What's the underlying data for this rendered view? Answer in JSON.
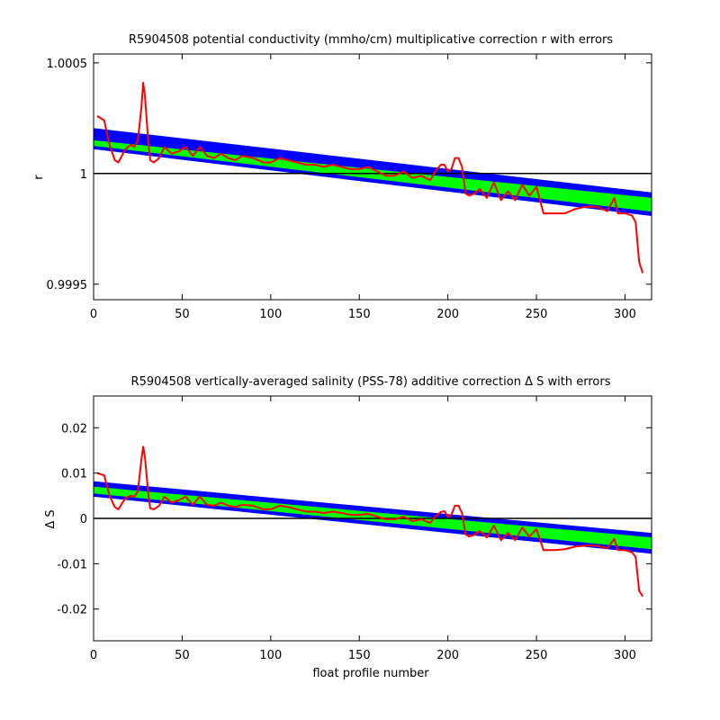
{
  "chart_data": [
    {
      "type": "line",
      "title": "R5904508 potential conductivity (mmho/cm) multiplicative correction r with errors",
      "xlabel": "",
      "ylabel": "r",
      "xlim": [
        0,
        315
      ],
      "ylim": [
        0.99943,
        1.00054
      ],
      "xticks": [
        0,
        50,
        100,
        150,
        200,
        250,
        300
      ],
      "xtick_labels": [
        "0",
        "50",
        "100",
        "150",
        "200",
        "250",
        "300"
      ],
      "yticks": [
        0.9995,
        1.0,
        1.0005
      ],
      "ytick_labels": [
        "0.9995",
        "1",
        "1.0005"
      ],
      "reference_line": 1.0,
      "grid": false,
      "colors": {
        "fit_band": "#00ff00",
        "error_band": "#0000ff",
        "raw_series": "#ff0000",
        "reference": "#000000"
      },
      "series": [
        {
          "kind": "band",
          "x": [
            0,
            315
          ],
          "outer_lower": [
            1.00011,
            0.999808
          ],
          "inner_lower": [
            1.000125,
            0.999828
          ],
          "inner_upper": [
            1.00015,
            0.99989
          ],
          "outer_upper": [
            1.000205,
            0.999915
          ]
        },
        {
          "kind": "line",
          "x": [
            2,
            6,
            9,
            12,
            14,
            18,
            21,
            23,
            25,
            27,
            28,
            29,
            31,
            32,
            34,
            37,
            40,
            44,
            48,
            52,
            56,
            60,
            64,
            68,
            72,
            76,
            80,
            84,
            90,
            96,
            100,
            105,
            110,
            115,
            120,
            125,
            130,
            135,
            140,
            145,
            150,
            155,
            160,
            165,
            170,
            175,
            180,
            185,
            190,
            193,
            196,
            198,
            200,
            202,
            204,
            206,
            208,
            210,
            212,
            215,
            218,
            222,
            226,
            230,
            234,
            238,
            242,
            246,
            250,
            254,
            260,
            266,
            272,
            278,
            284,
            290,
            294,
            296,
            300,
            304,
            306,
            308,
            310
          ],
          "y": [
            1.00026,
            1.00024,
            1.00013,
            1.00006,
            1.00005,
            1.00011,
            1.00013,
            1.00012,
            1.00015,
            1.0003,
            1.00041,
            1.00035,
            1.00013,
            1.00006,
            1.00005,
            1.00007,
            1.00012,
            1.00009,
            1.0001,
            1.00012,
            1.00008,
            1.00012,
            1.00008,
            1.00007,
            1.00009,
            1.00007,
            1.00006,
            1.00008,
            1.00007,
            1.00005,
            1.00005,
            1.00007,
            1.00006,
            1.00005,
            1.00004,
            1.00004,
            1.00003,
            1.00004,
            1.00003,
            1.00002,
            1.00002,
            1.00003,
            1.00001,
            0.99999,
            0.99999,
            1.00001,
            0.99998,
            0.99999,
            0.99997,
            1.00001,
            1.00004,
            1.00004,
            1.00001,
            1.00002,
            1.00007,
            1.00007,
            1.00003,
            0.99991,
            0.9999,
            0.99991,
            0.99993,
            0.99989,
            0.99996,
            0.99988,
            0.99992,
            0.99988,
            0.99995,
            0.9999,
            0.99994,
            0.99982,
            0.99982,
            0.99982,
            0.99984,
            0.99985,
            0.99985,
            0.99983,
            0.99989,
            0.99982,
            0.99982,
            0.99981,
            0.99978,
            0.9996,
            0.99955
          ]
        }
      ]
    },
    {
      "type": "line",
      "title": "R5904508 vertically-averaged salinity (PSS-78) additive correction Δ S with errors",
      "xlabel": "float profile number",
      "ylabel": "Δ S",
      "xlim": [
        0,
        315
      ],
      "ylim": [
        -0.027,
        0.027
      ],
      "xticks": [
        0,
        50,
        100,
        150,
        200,
        250,
        300
      ],
      "xtick_labels": [
        "0",
        "50",
        "100",
        "150",
        "200",
        "250",
        "300"
      ],
      "yticks": [
        -0.02,
        -0.01,
        0,
        0.01,
        0.02
      ],
      "ytick_labels": [
        "-0.02",
        "-0.01",
        "0",
        "0.01",
        "0.02"
      ],
      "reference_line": 0,
      "grid": false,
      "colors": {
        "fit_band": "#00ff00",
        "error_band": "#0000ff",
        "raw_series": "#ff0000",
        "reference": "#000000"
      },
      "series": [
        {
          "kind": "band",
          "x": [
            0,
            315
          ],
          "outer_lower": [
            0.0048,
            -0.0078
          ],
          "inner_lower": [
            0.0055,
            -0.0068
          ],
          "inner_upper": [
            0.007,
            -0.0042
          ],
          "outer_upper": [
            0.0082,
            -0.0032
          ]
        },
        {
          "kind": "line",
          "x": [
            2,
            6,
            9,
            12,
            14,
            18,
            21,
            23,
            25,
            27,
            28,
            29,
            31,
            32,
            34,
            37,
            40,
            44,
            48,
            52,
            56,
            60,
            64,
            68,
            72,
            76,
            80,
            84,
            90,
            96,
            100,
            105,
            110,
            115,
            120,
            125,
            130,
            135,
            140,
            145,
            150,
            155,
            160,
            165,
            170,
            175,
            180,
            185,
            190,
            193,
            196,
            198,
            200,
            202,
            204,
            206,
            208,
            210,
            212,
            215,
            218,
            222,
            226,
            230,
            234,
            238,
            242,
            246,
            250,
            254,
            260,
            266,
            272,
            278,
            284,
            290,
            294,
            296,
            300,
            304,
            306,
            308,
            310
          ],
          "y": [
            0.01,
            0.0095,
            0.005,
            0.0025,
            0.002,
            0.0045,
            0.005,
            0.0048,
            0.006,
            0.013,
            0.0158,
            0.0135,
            0.005,
            0.0022,
            0.002,
            0.0028,
            0.0048,
            0.0035,
            0.004,
            0.0048,
            0.003,
            0.0048,
            0.003,
            0.0028,
            0.0035,
            0.0028,
            0.0025,
            0.003,
            0.0028,
            0.002,
            0.002,
            0.0028,
            0.0025,
            0.002,
            0.0015,
            0.0015,
            0.0012,
            0.0015,
            0.0012,
            0.0008,
            0.0008,
            0.001,
            0.0004,
            -0.0002,
            -0.0002,
            0.0004,
            -0.0006,
            -0.0002,
            -0.001,
            0.0004,
            0.0014,
            0.0016,
            0.0004,
            0.0008,
            0.0028,
            0.0028,
            0.0012,
            -0.0035,
            -0.004,
            -0.0036,
            -0.0028,
            -0.0042,
            -0.0016,
            -0.0048,
            -0.0032,
            -0.0048,
            -0.002,
            -0.004,
            -0.0024,
            -0.007,
            -0.007,
            -0.0068,
            -0.0062,
            -0.006,
            -0.006,
            -0.0066,
            -0.0045,
            -0.007,
            -0.007,
            -0.0075,
            -0.0085,
            -0.016,
            -0.0172
          ]
        }
      ]
    }
  ]
}
